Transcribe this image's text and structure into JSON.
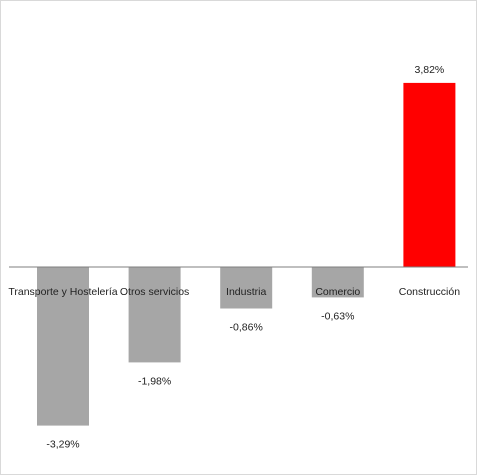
{
  "chart_data": {
    "type": "bar",
    "categories": [
      "Transporte y Hostelería",
      "Otros servicios",
      "Industria",
      "Comercio",
      "Construcción"
    ],
    "values": [
      -3.29,
      -1.98,
      -0.86,
      -0.63,
      3.82
    ],
    "value_labels": [
      "-3,29%",
      "-1,98%",
      "-0,86%",
      "-0,63%",
      "3,82%"
    ],
    "colors": {
      "negative": "#a6a6a6",
      "positive": "#ff0000",
      "axis": "#7f7f7f"
    },
    "ylim": [
      -4.2,
      4.0
    ],
    "grid": false,
    "legend": "none",
    "title": "",
    "xlabel": "",
    "ylabel": ""
  }
}
